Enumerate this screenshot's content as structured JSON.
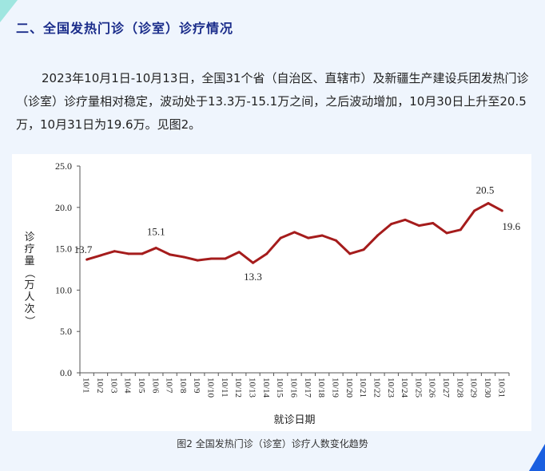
{
  "section": {
    "heading": "二、全国发热门诊（诊室）诊疗情况",
    "paragraph": "2023年10月1日-10月13日，全国31个省（自治区、直辖市）及新疆生产建设兵团发热门诊（诊室）诊疗量相对稳定，波动处于13.3万-15.1万之间，之后波动增加，10月30日上升至20.5万，10月31日为19.6万。见图2。"
  },
  "caption": "图2 全国发热门诊（诊室）诊疗人数变化趋势",
  "colors": {
    "line": "#a51c1c",
    "background": "#eff5fd",
    "heading": "#1a2c8a"
  },
  "chart_data": {
    "type": "line",
    "title": "",
    "xlabel": "就诊日期",
    "ylabel": "诊疗量（万人次）",
    "ylim": [
      0,
      25
    ],
    "yticks": [
      "0.0",
      "5.0",
      "10.0",
      "15.0",
      "20.0",
      "25.0"
    ],
    "grid": false,
    "categories": [
      "10/1",
      "10/2",
      "10/3",
      "10/4",
      "10/5",
      "10/6",
      "10/7",
      "10/8",
      "10/9",
      "10/10",
      "10/11",
      "10/12",
      "10/13",
      "10/14",
      "10/15",
      "10/16",
      "10/17",
      "10/18",
      "10/19",
      "10/20",
      "10/21",
      "10/22",
      "10/23",
      "10/24",
      "10/25",
      "10/26",
      "10/27",
      "10/28",
      "10/29",
      "10/30",
      "10/31"
    ],
    "values": [
      13.7,
      14.2,
      14.7,
      14.4,
      14.4,
      15.1,
      14.3,
      14.0,
      13.6,
      13.8,
      13.8,
      14.6,
      13.3,
      14.4,
      16.3,
      17.0,
      16.3,
      16.6,
      16.0,
      14.4,
      14.9,
      16.6,
      18.0,
      18.5,
      17.8,
      18.1,
      16.9,
      17.3,
      19.6,
      20.5,
      19.6
    ],
    "annotations": [
      {
        "category": "10/1",
        "label": "13.7"
      },
      {
        "category": "10/6",
        "label": "15.1"
      },
      {
        "category": "10/13",
        "label": "13.3"
      },
      {
        "category": "10/30",
        "label": "20.5"
      },
      {
        "category": "10/31",
        "label": "19.6"
      }
    ]
  }
}
